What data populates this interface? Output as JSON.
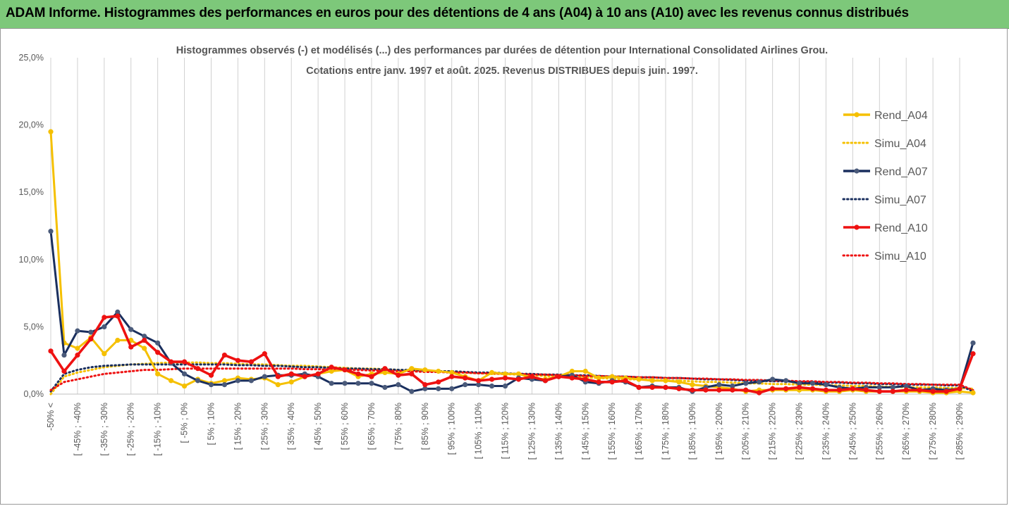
{
  "banner": {
    "title": "ADAM Informe. Histogrammes des performances en euros pour des détentions de 4 ans (A04) à 10 ans (A10) avec les revenus connus distribués"
  },
  "colors": {
    "banner": "#7dc87a",
    "Rend_A04": "#f5c000",
    "Simu_A04": "#f5c000",
    "Rend_A07": "#1a2f5e",
    "Simu_A07": "#1a2f5e",
    "Rend_A10": "#ee1111",
    "Simu_A10": "#ee1111",
    "grid": "#d0d0d0"
  },
  "chart_data": {
    "type": "line",
    "title": "Histogrammes observés (-)  et modélisés (...)  des performances par durées de détention pour International Consolidated Airlines Grou.",
    "subtitle": "Cotations entre janv. 1997 et août. 2025. Revenus DISTRIBUES depuis juin. 1997.",
    "xlabel": "",
    "ylabel": "",
    "ylim": [
      0,
      25
    ],
    "y_ticks": [
      "0,0%",
      "5,0%",
      "10,0%",
      "15,0%",
      "20,0%",
      "25,0%"
    ],
    "grid": "vertical",
    "legend_position": "right",
    "x_labels": [
      "-50% <",
      "[ -45% ; -40%",
      "[ -35% ; -30%",
      "[ -25% ; -20%",
      "[ -15% ; -10%",
      "[ -5% ; 0%",
      "[ 5% ; 10%",
      "[ 15% ; 20%",
      "[ 25% ; 30%",
      "[ 35% ; 40%",
      "[ 45% ; 50%",
      "[ 55% ; 60%",
      "[ 65% ; 70%",
      "[ 75% ; 80%",
      "[ 85% ; 90%",
      "[ 95% ; 100%",
      "[ 105% ; 110%",
      "[ 115% ; 120%",
      "[ 125% ; 130%",
      "[ 135% ; 140%",
      "[ 145% ; 150%",
      "[ 155% ; 160%",
      "[ 165% ; 170%",
      "[ 175% ; 180%",
      "[ 185% ; 190%",
      "[ 195% ; 200%",
      "[ 205% ; 210%",
      "[ 215% ; 220%",
      "[ 225% ; 230%",
      "[ 235% ; 240%",
      "[ 245% ; 250%",
      "[ 255% ; 260%",
      "[ 265% ; 270%",
      "[ 275% ; 280%",
      "[ 285% ; 290%"
    ],
    "n_categories": 70,
    "series": [
      {
        "name": "Rend_A04",
        "style": "solid",
        "markers": true,
        "values": [
          19.5,
          3.8,
          3.4,
          4.2,
          3.0,
          4.0,
          4.0,
          3.4,
          1.5,
          1.0,
          0.6,
          1.1,
          0.8,
          1.0,
          1.2,
          1.1,
          1.2,
          0.7,
          0.9,
          1.3,
          1.5,
          1.7,
          1.8,
          1.3,
          1.5,
          1.6,
          1.5,
          1.9,
          1.8,
          1.7,
          1.6,
          1.3,
          1.0,
          1.6,
          1.5,
          1.5,
          1.2,
          1.1,
          1.3,
          1.7,
          1.7,
          1.2,
          1.3,
          1.2,
          1.1,
          1.0,
          1.0,
          0.9,
          0.7,
          0.6,
          0.5,
          0.4,
          0.2,
          0.3,
          0.3,
          0.3,
          0.3,
          0.3,
          0.2,
          0.2,
          0.3,
          0.2,
          0.2,
          0.2,
          0.2,
          0.2,
          0.1,
          0.1,
          0.2,
          0.1
        ]
      },
      {
        "name": "Simu_A04",
        "style": "dotted",
        "markers": false,
        "values": [
          0.0,
          1.3,
          1.6,
          1.8,
          2.0,
          2.1,
          2.2,
          2.25,
          2.3,
          2.35,
          2.35,
          2.35,
          2.3,
          2.3,
          2.25,
          2.2,
          2.2,
          2.15,
          2.1,
          2.1,
          2.05,
          2.0,
          1.95,
          1.9,
          1.9,
          1.85,
          1.8,
          1.75,
          1.75,
          1.7,
          1.65,
          1.6,
          1.55,
          1.5,
          1.5,
          1.45,
          1.4,
          1.35,
          1.3,
          1.3,
          1.25,
          1.2,
          1.15,
          1.1,
          1.1,
          1.05,
          1.0,
          1.0,
          0.95,
          0.9,
          0.9,
          0.85,
          0.8,
          0.8,
          0.75,
          0.75,
          0.7,
          0.7,
          0.65,
          0.65,
          0.6,
          0.6,
          0.55,
          0.55,
          0.5,
          0.5,
          0.5,
          0.45,
          0.45,
          0.4
        ]
      },
      {
        "name": "Rend_A07",
        "style": "solid",
        "markers": true,
        "values": [
          12.1,
          2.9,
          4.7,
          4.6,
          5.0,
          6.1,
          4.8,
          4.3,
          3.8,
          2.3,
          1.5,
          1.0,
          0.7,
          0.7,
          1.0,
          1.0,
          1.3,
          1.4,
          1.4,
          1.5,
          1.3,
          0.8,
          0.8,
          0.8,
          0.8,
          0.5,
          0.7,
          0.2,
          0.4,
          0.4,
          0.4,
          0.7,
          0.7,
          0.6,
          0.6,
          1.2,
          1.1,
          1.0,
          1.3,
          1.4,
          0.9,
          0.8,
          1.0,
          0.9,
          0.5,
          0.6,
          0.5,
          0.5,
          0.2,
          0.5,
          0.7,
          0.6,
          0.8,
          0.9,
          1.1,
          1.0,
          0.8,
          0.8,
          0.7,
          0.5,
          0.4,
          0.5,
          0.5,
          0.5,
          0.6,
          0.3,
          0.4,
          0.3,
          0.4,
          3.8
        ]
      },
      {
        "name": "Simu_A07",
        "style": "dotted",
        "markers": false,
        "values": [
          0.2,
          1.5,
          1.8,
          2.0,
          2.1,
          2.15,
          2.2,
          2.2,
          2.2,
          2.2,
          2.2,
          2.2,
          2.2,
          2.2,
          2.15,
          2.15,
          2.1,
          2.1,
          2.05,
          2.0,
          2.0,
          1.95,
          1.9,
          1.9,
          1.85,
          1.85,
          1.8,
          1.8,
          1.75,
          1.7,
          1.7,
          1.65,
          1.6,
          1.6,
          1.55,
          1.5,
          1.5,
          1.45,
          1.45,
          1.4,
          1.4,
          1.35,
          1.3,
          1.3,
          1.25,
          1.25,
          1.2,
          1.2,
          1.15,
          1.1,
          1.1,
          1.05,
          1.0,
          1.0,
          0.95,
          0.95,
          0.9,
          0.9,
          0.85,
          0.85,
          0.8,
          0.8,
          0.75,
          0.75,
          0.7,
          0.7,
          0.7,
          0.65,
          0.65,
          0.2
        ]
      },
      {
        "name": "Rend_A10",
        "style": "solid",
        "markers": true,
        "values": [
          3.2,
          1.7,
          2.9,
          4.1,
          5.7,
          5.8,
          3.5,
          4.0,
          3.1,
          2.4,
          2.4,
          1.9,
          1.4,
          2.9,
          2.5,
          2.4,
          3.0,
          1.3,
          1.5,
          1.3,
          1.5,
          2.0,
          1.8,
          1.5,
          1.3,
          1.9,
          1.4,
          1.5,
          0.7,
          0.9,
          1.3,
          1.2,
          1.0,
          1.1,
          1.2,
          1.1,
          1.3,
          1.0,
          1.3,
          1.2,
          1.1,
          0.9,
          0.9,
          1.0,
          0.5,
          0.5,
          0.5,
          0.4,
          0.3,
          0.3,
          0.3,
          0.3,
          0.3,
          0.1,
          0.4,
          0.4,
          0.5,
          0.4,
          0.3,
          0.3,
          0.4,
          0.3,
          0.2,
          0.2,
          0.3,
          0.3,
          0.2,
          0.2,
          0.4,
          3.0
        ]
      },
      {
        "name": "Simu_A10",
        "style": "dotted",
        "markers": false,
        "values": [
          0.3,
          0.9,
          1.1,
          1.3,
          1.5,
          1.6,
          1.7,
          1.8,
          1.8,
          1.85,
          1.9,
          1.9,
          1.9,
          1.9,
          1.9,
          1.9,
          1.9,
          1.9,
          1.9,
          1.85,
          1.85,
          1.8,
          1.8,
          1.8,
          1.75,
          1.75,
          1.7,
          1.7,
          1.65,
          1.65,
          1.6,
          1.6,
          1.55,
          1.55,
          1.5,
          1.5,
          1.45,
          1.45,
          1.4,
          1.4,
          1.35,
          1.35,
          1.3,
          1.3,
          1.25,
          1.25,
          1.2,
          1.2,
          1.15,
          1.15,
          1.1,
          1.1,
          1.05,
          1.05,
          1.0,
          1.0,
          0.95,
          0.95,
          0.9,
          0.9,
          0.85,
          0.85,
          0.8,
          0.8,
          0.75,
          0.75,
          0.7,
          0.7,
          0.7,
          0.3
        ]
      }
    ]
  }
}
